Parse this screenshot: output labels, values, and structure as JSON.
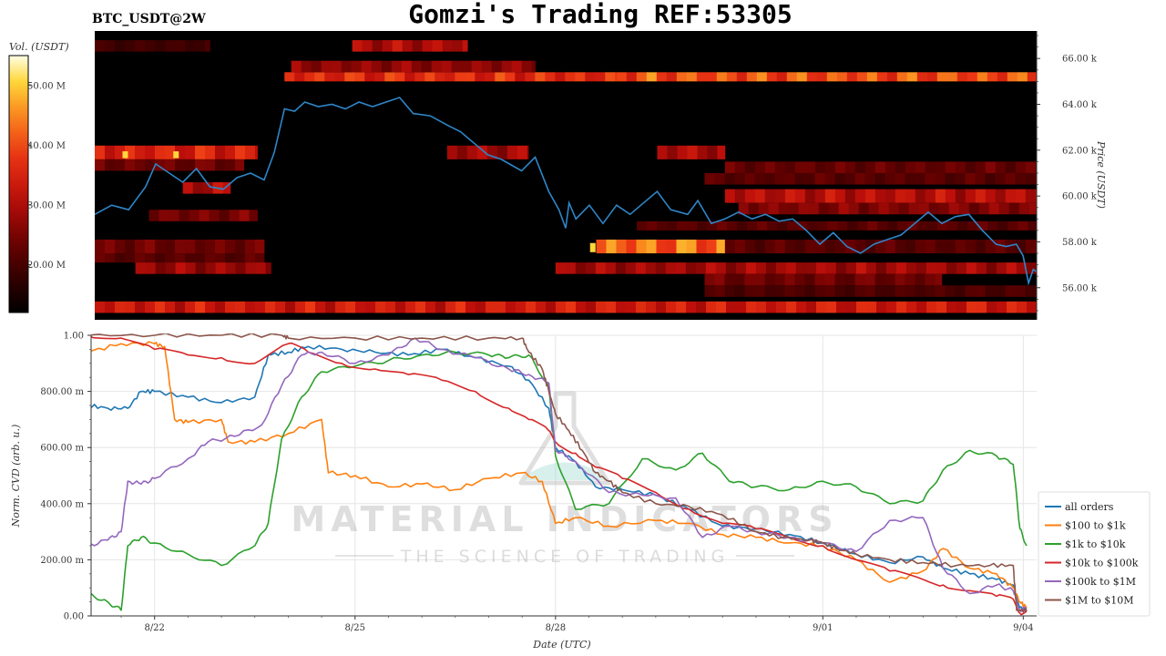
{
  "header": {
    "symbol": "BTC_USDT@2W",
    "title": "Gomzi's Trading REF:53305"
  },
  "watermark": {
    "brand": "MATERIAL INDICATORS",
    "tagline": "THE SCIENCE OF TRADING"
  },
  "colors": {
    "price_line": "#2e86c8",
    "heatmap_bg": "#000000",
    "grid": "#e6e6e6"
  },
  "chart_data": [
    {
      "type": "heatmap",
      "ylabel": "Price (USDT)",
      "colorbar_label": "Vol. (USDT)",
      "y_ticks": [
        "56.00 k",
        "58.00 k",
        "60.00 k",
        "62.00 k",
        "64.00 k",
        "66.00 k"
      ],
      "y_tick_values": [
        56000,
        58000,
        60000,
        62000,
        64000,
        66000
      ],
      "ylim": [
        54600,
        67200
      ],
      "colorbar_ticks": [
        "20.00 M",
        "30.00 M",
        "40.00 M",
        "50.00 M"
      ],
      "colorbar_tick_values": [
        20,
        30,
        40,
        50
      ],
      "colorbar_range": [
        12,
        55
      ],
      "xlim": [
        0,
        13.9
      ],
      "price_series": {
        "x": [
          0.0,
          0.25,
          0.5,
          0.75,
          0.9,
          1.1,
          1.3,
          1.5,
          1.7,
          1.9,
          2.1,
          2.3,
          2.5,
          2.65,
          2.8,
          2.95,
          3.1,
          3.3,
          3.5,
          3.7,
          3.9,
          4.1,
          4.3,
          4.5,
          4.7,
          4.95,
          5.2,
          5.4,
          5.6,
          5.8,
          6.0,
          6.3,
          6.5,
          6.7,
          6.85,
          6.95,
          7.0,
          7.1,
          7.3,
          7.5,
          7.7,
          7.9,
          8.1,
          8.3,
          8.5,
          8.75,
          8.9,
          9.1,
          9.3,
          9.5,
          9.7,
          9.9,
          10.1,
          10.3,
          10.5,
          10.7,
          10.9,
          11.1,
          11.3,
          11.5,
          11.7,
          11.9,
          12.1,
          12.3,
          12.5,
          12.7,
          12.9,
          13.1,
          13.3,
          13.45,
          13.6,
          13.7,
          13.78,
          13.85,
          13.9
        ],
        "y": [
          59200,
          59600,
          59400,
          60400,
          61400,
          61000,
          60600,
          61200,
          60400,
          60300,
          60800,
          61000,
          60700,
          61900,
          63800,
          63700,
          64100,
          63900,
          64000,
          63800,
          64100,
          63900,
          64100,
          64300,
          63600,
          63500,
          63100,
          62800,
          62300,
          61800,
          61600,
          61100,
          61700,
          60200,
          59400,
          58600,
          59700,
          59000,
          59600,
          58800,
          59600,
          59200,
          59700,
          60200,
          59400,
          59200,
          59800,
          58800,
          59000,
          59300,
          59000,
          59200,
          58900,
          59000,
          58500,
          57900,
          58400,
          57800,
          57500,
          57900,
          58100,
          58300,
          58800,
          59300,
          58800,
          59100,
          59200,
          58500,
          57900,
          57800,
          57900,
          57400,
          56200,
          56800,
          56700
        ]
      },
      "heat_bands": [
        {
          "y0": 65000,
          "y1": 65400,
          "x0": 7.7,
          "x1": 13.9,
          "intensity": 0.72
        },
        {
          "y0": 65000,
          "y1": 65400,
          "x0": 2.8,
          "x1": 7.7,
          "intensity": 0.62
        },
        {
          "y0": 65400,
          "y1": 65900,
          "x0": 2.9,
          "x1": 6.5,
          "intensity": 0.38
        },
        {
          "y0": 66300,
          "y1": 66800,
          "x0": 3.8,
          "x1": 5.5,
          "intensity": 0.45
        },
        {
          "y0": 66300,
          "y1": 66800,
          "x0": 0.0,
          "x1": 1.7,
          "intensity": 0.18
        },
        {
          "y0": 61600,
          "y1": 62200,
          "x0": 0.0,
          "x1": 2.4,
          "intensity": 0.58
        },
        {
          "y0": 61600,
          "y1": 62200,
          "x0": 5.2,
          "x1": 6.4,
          "intensity": 0.42
        },
        {
          "y0": 61600,
          "y1": 62200,
          "x0": 8.3,
          "x1": 9.3,
          "intensity": 0.45
        },
        {
          "y0": 61100,
          "y1": 61600,
          "x0": 0.0,
          "x1": 2.2,
          "intensity": 0.3
        },
        {
          "y0": 61000,
          "y1": 61500,
          "x0": 9.3,
          "x1": 13.9,
          "intensity": 0.28
        },
        {
          "y0": 60500,
          "y1": 61000,
          "x0": 9.0,
          "x1": 13.9,
          "intensity": 0.25
        },
        {
          "y0": 60100,
          "y1": 60600,
          "x0": 1.3,
          "x1": 2.0,
          "intensity": 0.45
        },
        {
          "y0": 59700,
          "y1": 60300,
          "x0": 9.3,
          "x1": 13.9,
          "intensity": 0.48
        },
        {
          "y0": 59200,
          "y1": 59700,
          "x0": 9.5,
          "x1": 13.9,
          "intensity": 0.35
        },
        {
          "y0": 58900,
          "y1": 59400,
          "x0": 0.8,
          "x1": 2.4,
          "intensity": 0.32
        },
        {
          "y0": 58500,
          "y1": 58900,
          "x0": 8.0,
          "x1": 13.9,
          "intensity": 0.25
        },
        {
          "y0": 57500,
          "y1": 58100,
          "x0": 7.4,
          "x1": 9.3,
          "intensity": 0.78
        },
        {
          "y0": 57500,
          "y1": 58100,
          "x0": 0.0,
          "x1": 2.5,
          "intensity": 0.3
        },
        {
          "y0": 57500,
          "y1": 58100,
          "x0": 9.3,
          "x1": 13.9,
          "intensity": 0.25
        },
        {
          "y0": 57100,
          "y1": 57500,
          "x0": 0.0,
          "x1": 2.5,
          "intensity": 0.25
        },
        {
          "y0": 56600,
          "y1": 57100,
          "x0": 0.6,
          "x1": 2.6,
          "intensity": 0.4
        },
        {
          "y0": 56600,
          "y1": 57100,
          "x0": 6.8,
          "x1": 13.9,
          "intensity": 0.42
        },
        {
          "y0": 56100,
          "y1": 56600,
          "x0": 9.0,
          "x1": 12.5,
          "intensity": 0.3
        },
        {
          "y0": 55600,
          "y1": 56100,
          "x0": 9.0,
          "x1": 13.9,
          "intensity": 0.22
        },
        {
          "y0": 54900,
          "y1": 55400,
          "x0": 0.0,
          "x1": 13.9,
          "intensity": 0.55
        }
      ]
    },
    {
      "type": "line",
      "xlabel": "Date (UTC)",
      "ylabel": "Norm. CVD (arb. u.)",
      "x_ticks": [
        "8/22",
        "8/25",
        "8/28",
        "9/01",
        "9/04"
      ],
      "x_tick_values": [
        1.0,
        4.0,
        7.0,
        11.0,
        14.0
      ],
      "xlim": [
        0.05,
        14.2
      ],
      "y_ticks": [
        "0.00",
        "200.00 m",
        "400.00 m",
        "600.00 m",
        "800.00 m",
        "1.00"
      ],
      "y_tick_values": [
        0,
        0.2,
        0.4,
        0.6,
        0.8,
        1.0
      ],
      "ylim": [
        0,
        1.0
      ],
      "grid": true,
      "legend": "right",
      "series": [
        {
          "name": "all orders",
          "color": "#1f77b4",
          "x": [
            0.0,
            0.3,
            0.6,
            0.8,
            1.0,
            1.5,
            2.0,
            2.5,
            2.7,
            3.0,
            3.3,
            3.8,
            4.3,
            4.8,
            5.3,
            5.8,
            6.3,
            6.6,
            6.9,
            7.0,
            7.3,
            7.6,
            8.0,
            8.5,
            9.0,
            9.5,
            10.0,
            10.5,
            11.0,
            11.5,
            12.0,
            12.5,
            12.8,
            13.2,
            13.6,
            13.85,
            13.95,
            14.05
          ],
          "y": [
            0.75,
            0.74,
            0.74,
            0.8,
            0.8,
            0.78,
            0.76,
            0.78,
            0.93,
            0.94,
            0.96,
            0.95,
            0.94,
            0.93,
            0.95,
            0.92,
            0.89,
            0.84,
            0.74,
            0.6,
            0.55,
            0.46,
            0.45,
            0.43,
            0.38,
            0.32,
            0.31,
            0.29,
            0.26,
            0.22,
            0.19,
            0.21,
            0.17,
            0.15,
            0.13,
            0.11,
            0.03,
            0.02
          ]
        },
        {
          "name": "$100 to $1k",
          "color": "#ff7f0e",
          "x": [
            0.0,
            0.5,
            1.0,
            1.15,
            1.3,
            1.5,
            2.0,
            2.1,
            2.5,
            3.0,
            3.5,
            3.6,
            4.0,
            4.5,
            5.0,
            5.5,
            6.0,
            6.5,
            6.8,
            7.0,
            7.3,
            7.8,
            8.5,
            9.0,
            9.5,
            10.0,
            10.5,
            11.0,
            11.5,
            12.0,
            12.5,
            12.8,
            13.2,
            13.6,
            13.85,
            13.95,
            14.05
          ],
          "y": [
            0.94,
            0.97,
            0.97,
            0.96,
            0.7,
            0.69,
            0.7,
            0.62,
            0.62,
            0.65,
            0.7,
            0.51,
            0.5,
            0.46,
            0.47,
            0.45,
            0.49,
            0.51,
            0.48,
            0.33,
            0.35,
            0.32,
            0.34,
            0.33,
            0.29,
            0.28,
            0.26,
            0.25,
            0.2,
            0.12,
            0.16,
            0.24,
            0.17,
            0.15,
            0.1,
            0.05,
            0.03
          ]
        },
        {
          "name": "$1k to $10k",
          "color": "#2ca02c",
          "x": [
            0.0,
            0.3,
            0.5,
            0.6,
            0.8,
            1.0,
            1.5,
            2.0,
            2.5,
            2.7,
            2.9,
            3.2,
            3.5,
            4.0,
            4.5,
            5.0,
            5.5,
            6.0,
            6.3,
            6.6,
            6.9,
            7.0,
            7.3,
            7.8,
            8.3,
            8.8,
            9.2,
            9.6,
            10.0,
            10.5,
            11.0,
            11.5,
            12.0,
            12.5,
            12.8,
            13.2,
            13.6,
            13.85,
            13.95,
            14.05
          ],
          "y": [
            0.08,
            0.05,
            0.02,
            0.25,
            0.28,
            0.26,
            0.22,
            0.18,
            0.25,
            0.33,
            0.63,
            0.78,
            0.87,
            0.89,
            0.91,
            0.93,
            0.94,
            0.93,
            0.92,
            0.93,
            0.82,
            0.57,
            0.38,
            0.4,
            0.56,
            0.52,
            0.58,
            0.48,
            0.46,
            0.45,
            0.48,
            0.46,
            0.4,
            0.41,
            0.52,
            0.59,
            0.57,
            0.54,
            0.31,
            0.25
          ]
        },
        {
          "name": "$10k to $100k",
          "color": "#d62728",
          "x": [
            0.0,
            0.5,
            1.0,
            1.5,
            2.0,
            2.5,
            3.0,
            3.3,
            3.8,
            4.3,
            4.8,
            5.3,
            5.8,
            6.3,
            6.6,
            6.9,
            7.0,
            7.3,
            7.6,
            8.0,
            8.5,
            9.0,
            9.5,
            10.0,
            10.5,
            11.0,
            11.5,
            12.0,
            12.5,
            12.8,
            13.2,
            13.6,
            13.85,
            13.95,
            14.05
          ],
          "y": [
            1.0,
            0.99,
            0.95,
            0.93,
            0.92,
            0.9,
            0.97,
            0.94,
            0.9,
            0.88,
            0.86,
            0.84,
            0.8,
            0.74,
            0.7,
            0.66,
            0.62,
            0.58,
            0.53,
            0.49,
            0.44,
            0.38,
            0.33,
            0.31,
            0.28,
            0.25,
            0.2,
            0.16,
            0.13,
            0.11,
            0.09,
            0.07,
            0.06,
            0.01,
            0.02
          ]
        },
        {
          "name": "$100k to $1M",
          "color": "#9467bd",
          "x": [
            0.0,
            0.3,
            0.5,
            0.6,
            0.8,
            1.0,
            1.5,
            1.8,
            2.2,
            2.6,
            2.9,
            3.2,
            3.5,
            4.0,
            4.5,
            4.9,
            5.3,
            5.8,
            6.3,
            6.6,
            6.9,
            7.0,
            7.3,
            7.8,
            8.3,
            8.8,
            9.2,
            9.6,
            10.0,
            10.5,
            11.0,
            11.5,
            12.0,
            12.5,
            12.8,
            13.2,
            13.6,
            13.85,
            13.95,
            14.05
          ],
          "y": [
            0.25,
            0.27,
            0.3,
            0.48,
            0.47,
            0.49,
            0.56,
            0.62,
            0.64,
            0.68,
            0.82,
            0.93,
            0.94,
            0.9,
            0.93,
            0.99,
            0.95,
            0.92,
            0.88,
            0.86,
            0.83,
            0.59,
            0.55,
            0.44,
            0.43,
            0.42,
            0.28,
            0.32,
            0.3,
            0.28,
            0.26,
            0.23,
            0.34,
            0.35,
            0.17,
            0.08,
            0.11,
            0.09,
            0.02,
            0.03
          ]
        },
        {
          "name": "$1M to $10M",
          "color": "#8c564b",
          "x": [
            0.0,
            1.0,
            2.0,
            2.9,
            3.0,
            4.0,
            5.0,
            6.0,
            6.5,
            6.6,
            6.8,
            6.9,
            7.0,
            7.2,
            7.4,
            7.6,
            7.8,
            8.0,
            8.5,
            9.0,
            9.5,
            10.0,
            10.4,
            10.8,
            11.0,
            11.2,
            11.5,
            12.0,
            12.5,
            13.0,
            13.5,
            13.85,
            13.9,
            14.05
          ],
          "y": [
            1.0,
            1.0,
            1.0,
            1.0,
            0.99,
            0.99,
            0.99,
            0.99,
            0.99,
            0.94,
            0.88,
            0.8,
            0.72,
            0.66,
            0.59,
            0.51,
            0.48,
            0.44,
            0.4,
            0.39,
            0.36,
            0.3,
            0.28,
            0.27,
            0.26,
            0.24,
            0.22,
            0.2,
            0.19,
            0.18,
            0.18,
            0.18,
            0.02,
            0.02
          ]
        }
      ]
    }
  ]
}
